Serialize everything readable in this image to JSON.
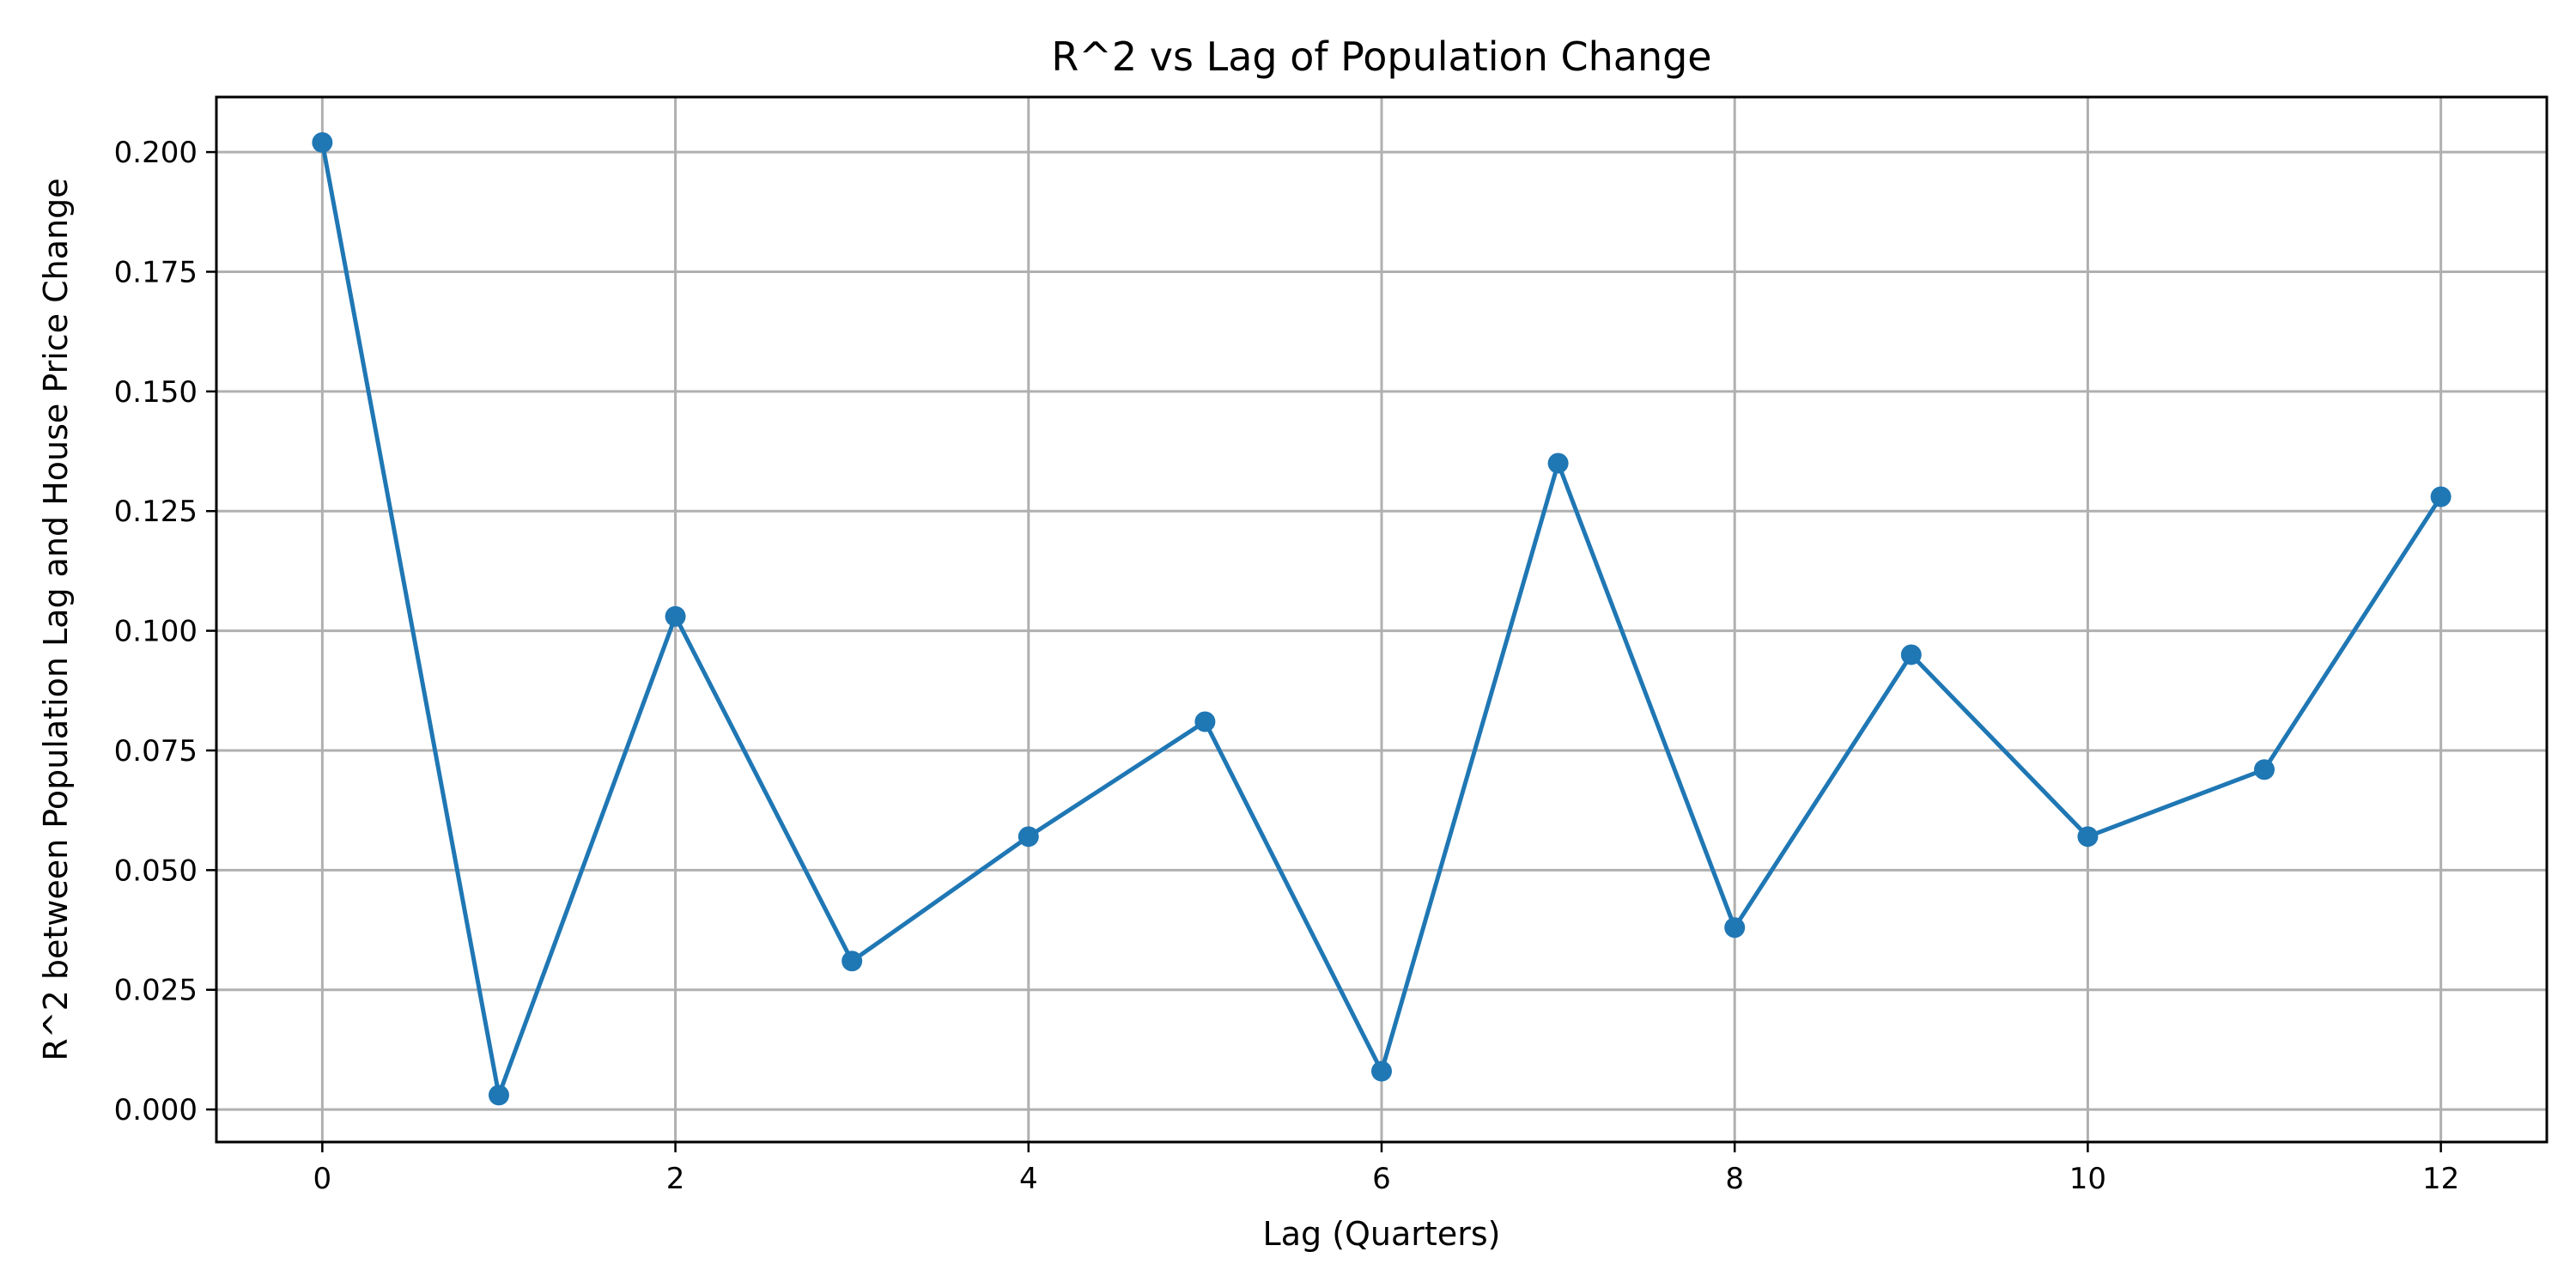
{
  "chart_data": {
    "type": "line",
    "title": "R^2 vs Lag of Population Change",
    "xlabel": "Lag (Quarters)",
    "ylabel": "R^2 between Population Lag and House Price Change",
    "xlim": [
      -0.6,
      12.6
    ],
    "ylim": [
      -0.0068,
      0.2115
    ],
    "x_ticks": [
      0,
      2,
      4,
      6,
      8,
      10,
      12
    ],
    "x_tick_labels": [
      "0",
      "2",
      "4",
      "6",
      "8",
      "10",
      "12"
    ],
    "y_ticks": [
      0.0,
      0.025,
      0.05,
      0.075,
      0.1,
      0.125,
      0.15,
      0.175,
      0.2
    ],
    "y_tick_labels": [
      "0.000",
      "0.025",
      "0.050",
      "0.075",
      "0.100",
      "0.125",
      "0.150",
      "0.175",
      "0.200"
    ],
    "grid": true,
    "series": [
      {
        "color": "#1f77b4",
        "marker": "circle",
        "x": [
          0,
          1,
          2,
          3,
          4,
          5,
          6,
          7,
          8,
          9,
          10,
          11,
          12
        ],
        "y": [
          0.202,
          0.003,
          0.103,
          0.031,
          0.057,
          0.081,
          0.008,
          0.135,
          0.038,
          0.095,
          0.057,
          0.071,
          0.128
        ]
      }
    ]
  }
}
